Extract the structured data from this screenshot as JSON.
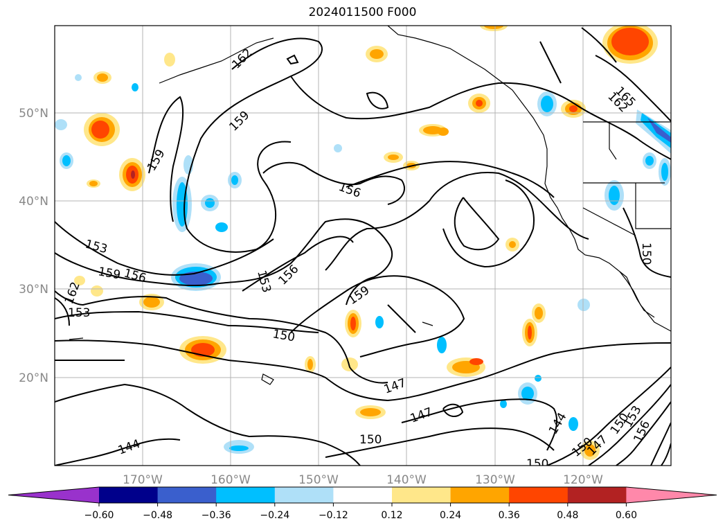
{
  "title": "2024011500 F000",
  "map": {
    "type": "contour-map",
    "lon_labels": [
      "170°W",
      "160°W",
      "150°W",
      "140°W",
      "130°W",
      "120°W"
    ],
    "lat_labels": [
      "50°N",
      "40°N",
      "30°N",
      "20°N"
    ],
    "contour_labels": [
      "162",
      "159",
      "159",
      "159",
      "156",
      "156",
      "156",
      "153",
      "153",
      "153",
      "162",
      "150",
      "159",
      "147",
      "147",
      "150",
      "144",
      "147",
      "144",
      "150",
      "150",
      "165",
      "162",
      "150",
      "153",
      "156",
      "150"
    ],
    "grid": true,
    "coastlines": true
  },
  "colorbar": {
    "ticks": [
      "−0.60",
      "−0.48",
      "−0.36",
      "−0.24",
      "−0.12",
      "0.12",
      "0.24",
      "0.36",
      "0.48",
      "0.60"
    ],
    "colors": [
      "#9932cc",
      "#00008b",
      "#3a5fcd",
      "#00bfff",
      "#afe0f8",
      "#ffffff",
      "#ffe78a",
      "#ffa500",
      "#ff4500",
      "#b22222",
      "#ff88aa"
    ]
  }
}
